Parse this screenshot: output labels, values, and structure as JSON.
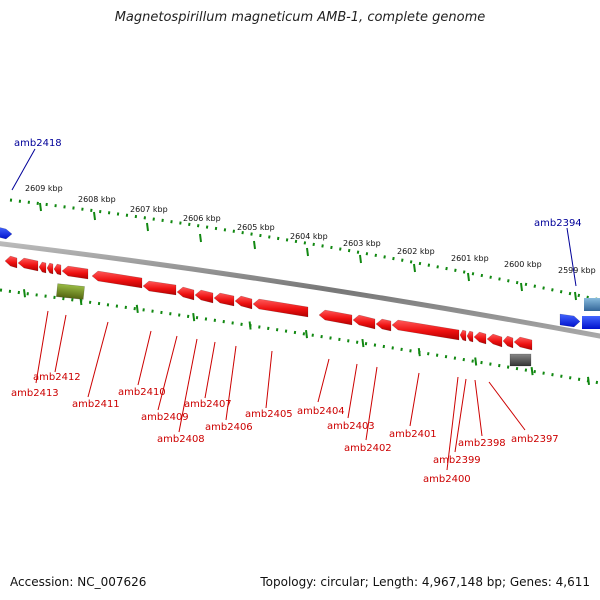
{
  "title": "Magnetospirillum magneticum AMB-1, complete genome",
  "footer": {
    "accession": "Accession: NC_007626",
    "summary": "Topology: circular; Length: 4,967,148 bp; Genes: 4,611"
  },
  "ruler": [
    {
      "label": "2609 kbp"
    },
    {
      "label": "2608 kbp"
    },
    {
      "label": "2607 kbp"
    },
    {
      "label": "2606 kbp"
    },
    {
      "label": "2605 kbp"
    },
    {
      "label": "2604 kbp"
    },
    {
      "label": "2603 kbp"
    },
    {
      "label": "2602 kbp"
    },
    {
      "label": "2601 kbp"
    },
    {
      "label": "2600 kbp"
    },
    {
      "label": "2599 kbp"
    }
  ],
  "outer_labels": [
    "amb2418",
    "amb2394"
  ],
  "gene_labels": [
    "amb2413",
    "amb2412",
    "amb2411",
    "amb2410",
    "amb2409",
    "amb2408",
    "amb2407",
    "amb2406",
    "amb2405",
    "amb2404",
    "amb2403",
    "amb2402",
    "amb2401",
    "amb2400",
    "amb2399",
    "amb2398",
    "amb2397"
  ],
  "colors": {
    "backbone": "#888888",
    "gene": "#ee1111",
    "highlight_gene": "#668822",
    "pseudo_gene": "#555555",
    "outer_gene": "#1122ee",
    "outer_gene_light": "#4488bb",
    "ruler": "#118811",
    "label_red": "#cc0000",
    "label_blue": "#000099"
  }
}
